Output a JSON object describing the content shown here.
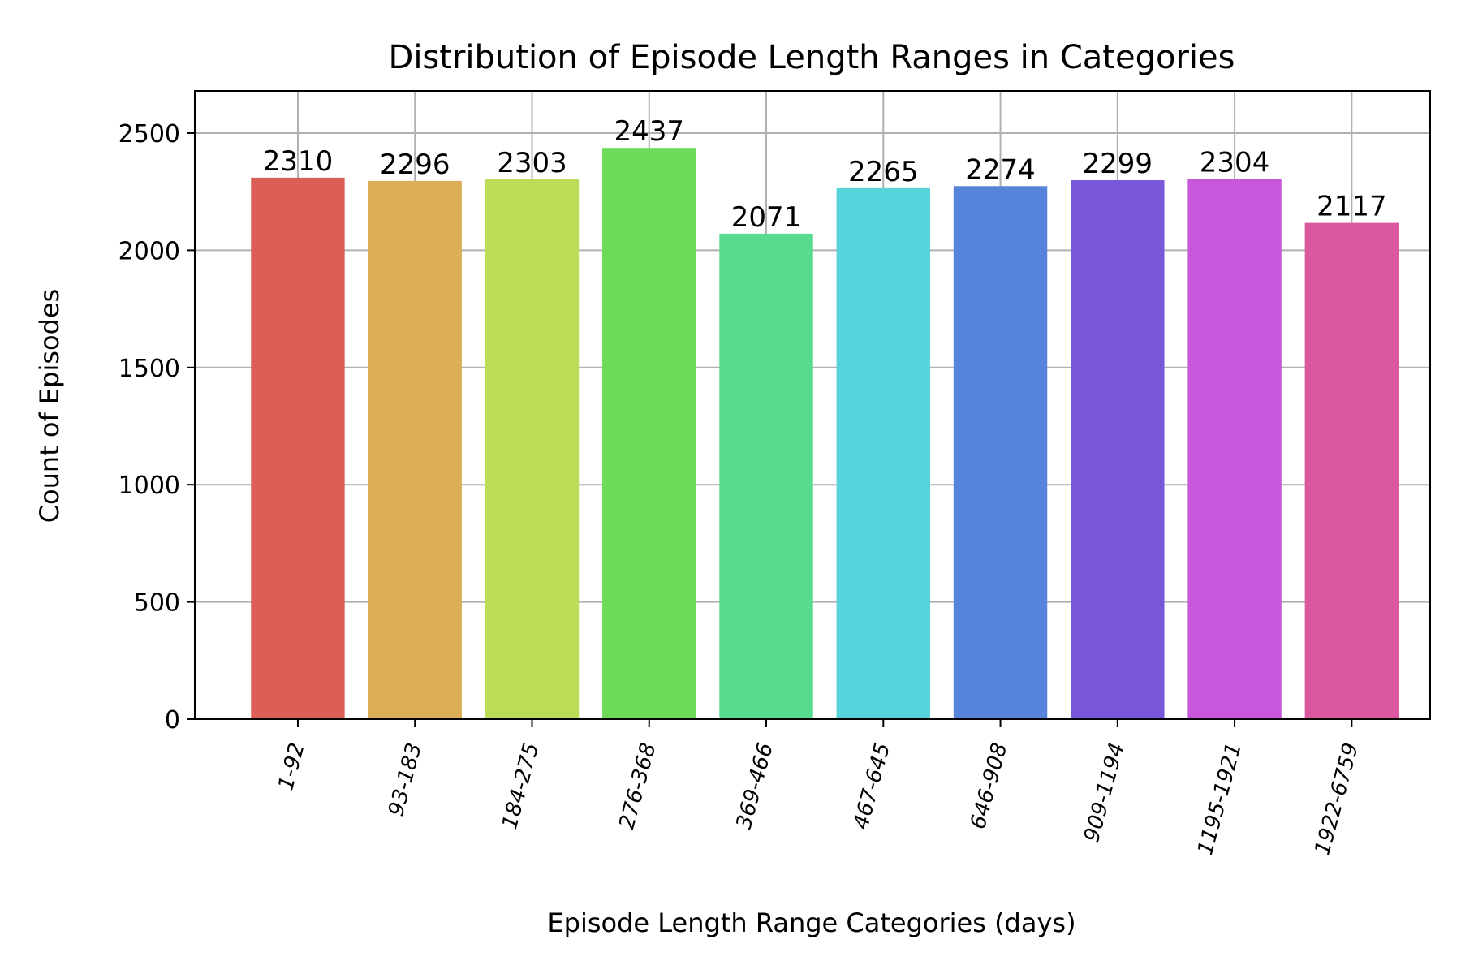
{
  "chart_data": {
    "type": "bar",
    "title": "Distribution of Episode Length Ranges in Categories",
    "xlabel": "Episode Length Range Categories (days)",
    "ylabel": "Count of Episodes",
    "categories": [
      "1-92",
      "93-183",
      "184-275",
      "276-368",
      "369-466",
      "467-645",
      "646-908",
      "909-1194",
      "1195-1921",
      "1922-6759"
    ],
    "values": [
      2310,
      2296,
      2303,
      2437,
      2071,
      2265,
      2274,
      2299,
      2304,
      2117
    ],
    "colors": [
      "#db5f57",
      "#dbae57",
      "#bcdb57",
      "#6ddb57",
      "#57db8c",
      "#57d3db",
      "#5784db",
      "#7957db",
      "#c957db",
      "#db57a0"
    ],
    "ylim": [
      0,
      2680
    ],
    "yticks": [
      0,
      500,
      1000,
      1500,
      2000,
      2500
    ],
    "grid": true,
    "legend": "none"
  }
}
